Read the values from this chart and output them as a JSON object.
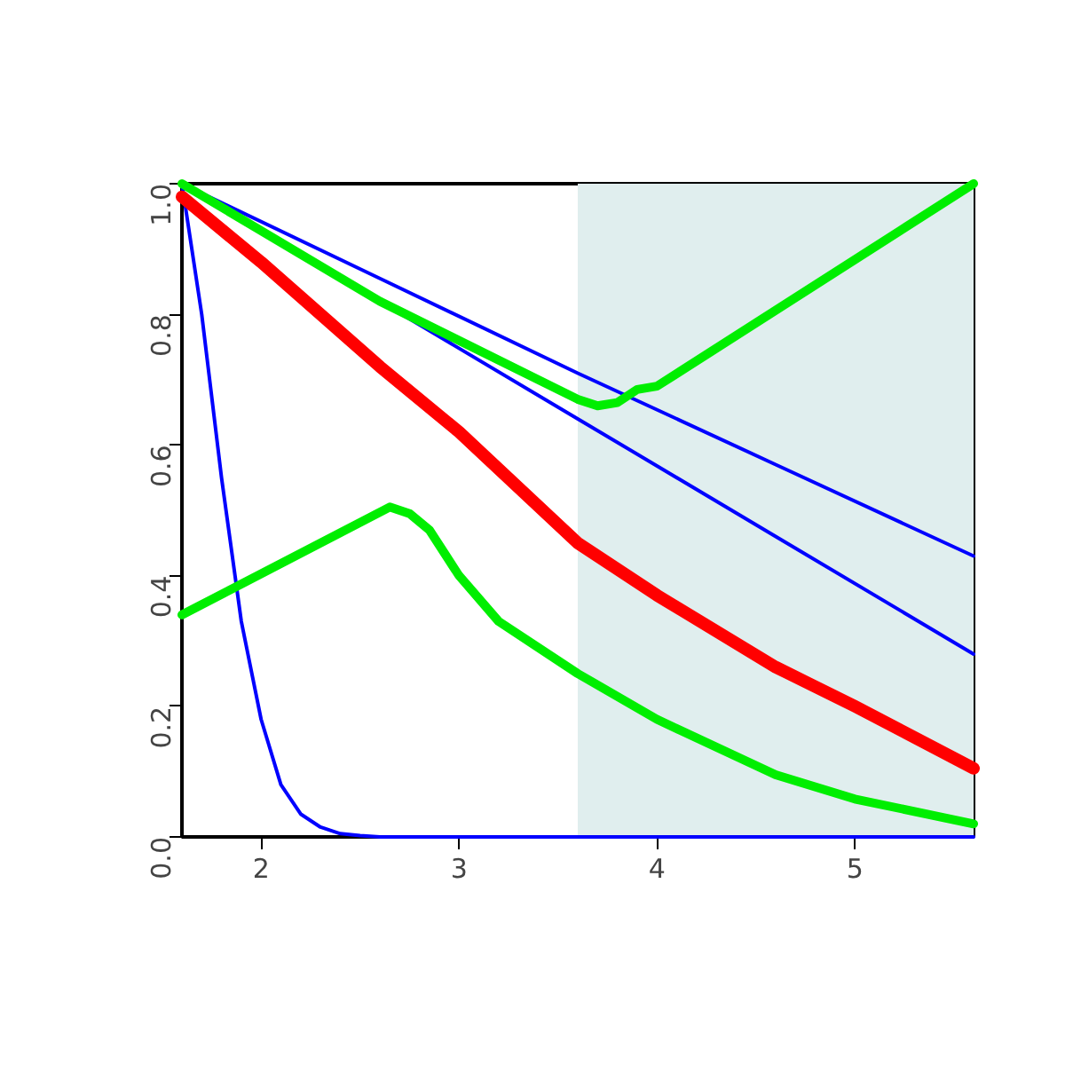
{
  "chart_data": {
    "type": "line",
    "xlim": [
      1.6,
      5.6
    ],
    "ylim": [
      0,
      1
    ],
    "xticks": [
      2,
      3,
      4,
      5
    ],
    "yticks": [
      {
        "value": 0,
        "label": "0.0"
      },
      {
        "value": 0.2,
        "label": "0.2"
      },
      {
        "value": 0.4,
        "label": "0.4"
      },
      {
        "value": 0.6,
        "label": "0.6"
      },
      {
        "value": 0.8,
        "label": "0.8"
      },
      {
        "value": 1,
        "label": "1.0"
      }
    ],
    "grid": false,
    "marker": "none",
    "line_style": "solid",
    "bands": [
      {
        "axis": "x",
        "from": 3.6,
        "to": 5.6,
        "color": "#e0eeee"
      }
    ],
    "series": [
      {
        "color": "#0000ff",
        "x": [
          1.6,
          1.7,
          1.8,
          1.9,
          2.0,
          2.1,
          2.2,
          2.3,
          2.4,
          2.5,
          2.6,
          3.0,
          4.0,
          5.0,
          5.6
        ],
        "values": [
          1.0,
          0.8,
          0.55,
          0.33,
          0.18,
          0.08,
          0.035,
          0.015,
          0.005,
          0.002,
          0,
          0,
          0,
          0,
          0
        ]
      },
      {
        "color": "#0000ff",
        "x": [
          1.6,
          2.6,
          3.6,
          4.6,
          5.6
        ],
        "values": [
          1.0,
          0.855,
          0.71,
          0.57,
          0.43
        ]
      },
      {
        "color": "#0000ff",
        "x": [
          1.6,
          3.6,
          4.6,
          5.6
        ],
        "values": [
          1.0,
          0.64,
          0.46,
          0.28
        ]
      },
      {
        "color": "#ff0000",
        "x": [
          1.6,
          2.0,
          2.6,
          3.0,
          3.6,
          4.0,
          4.6,
          5.0,
          5.6
        ],
        "values": [
          0.98,
          0.88,
          0.72,
          0.62,
          0.45,
          0.37,
          0.26,
          0.2,
          0.105
        ]
      },
      {
        "color": "#00ee00",
        "x": [
          1.6,
          2.6,
          3.6,
          3.7,
          3.8,
          3.9,
          4.0,
          5.6
        ],
        "values": [
          1.0,
          0.82,
          0.67,
          0.66,
          0.665,
          0.685,
          0.69,
          1.0
        ]
      },
      {
        "color": "#00ee00",
        "x": [
          1.6,
          2.65,
          2.75,
          2.85,
          3.0,
          3.2,
          3.6,
          4.0,
          4.6,
          5.0,
          5.6
        ],
        "values": [
          0.34,
          0.505,
          0.495,
          0.47,
          0.4,
          0.33,
          0.25,
          0.18,
          0.095,
          0.058,
          0.02
        ]
      }
    ]
  }
}
